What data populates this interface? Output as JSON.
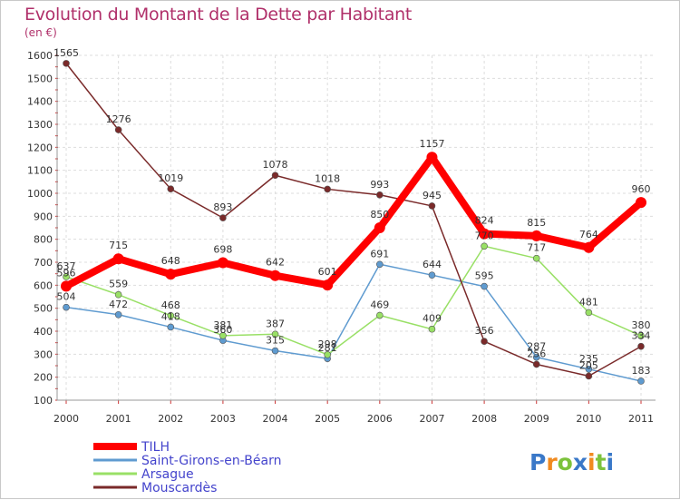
{
  "chart_data": {
    "type": "line",
    "title": "Evolution du Montant de la Dette par Habitant",
    "unit_label": "(en €)",
    "xlabel": "",
    "ylabel": "",
    "categories": [
      "2000",
      "2001",
      "2002",
      "2003",
      "2004",
      "2005",
      "2006",
      "2007",
      "2008",
      "2009",
      "2010",
      "2011"
    ],
    "ylim": [
      100,
      1600
    ],
    "yticks": [
      100,
      200,
      300,
      400,
      500,
      600,
      700,
      800,
      900,
      1000,
      1100,
      1200,
      1300,
      1400,
      1500,
      1600
    ],
    "grid": true,
    "legend_position": "bottom-left",
    "series": [
      {
        "name": "TILH",
        "color": "#ff0000",
        "emphasis": true,
        "values": [
          596,
          715,
          648,
          698,
          642,
          601,
          850,
          1157,
          824,
          815,
          764,
          960
        ]
      },
      {
        "name": "Saint-Girons-en-Béarn",
        "color": "#5f9bd0",
        "values": [
          504,
          472,
          418,
          360,
          315,
          281,
          691,
          644,
          595,
          287,
          235,
          183
        ]
      },
      {
        "name": "Arsague",
        "color": "#99e066",
        "values": [
          637,
          559,
          468,
          381,
          387,
          298,
          469,
          409,
          770,
          717,
          481,
          380
        ]
      },
      {
        "name": "Mouscardès",
        "color": "#7a2a2a",
        "values": [
          1565,
          1276,
          1019,
          893,
          1078,
          1018,
          993,
          945,
          356,
          256,
          205,
          334
        ]
      }
    ]
  },
  "brand": {
    "text": "Proxiti"
  }
}
